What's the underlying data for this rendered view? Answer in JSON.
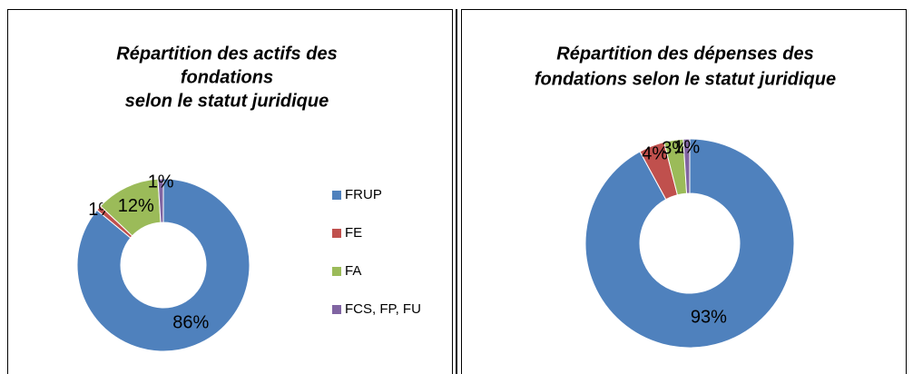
{
  "chart_data": [
    {
      "type": "donut",
      "title": [
        "Répartition des actifs des",
        "fondations",
        "selon le statut juridique"
      ],
      "categories": [
        "FRUP",
        "FE",
        "FA",
        "FCS, FP, FU"
      ],
      "values": [
        86,
        1,
        12,
        1
      ],
      "value_labels": [
        "86%",
        "1%",
        "12%",
        "1%"
      ],
      "colors": [
        "#4f81bd",
        "#c0504d",
        "#9bbb59",
        "#8064a2"
      ],
      "legend": "right"
    },
    {
      "type": "donut",
      "title": [
        "Répartition des dépenses des",
        "fondations selon le statut juridique"
      ],
      "values": [
        93,
        4,
        3,
        1
      ],
      "value_labels": [
        "93%",
        "4%",
        "3%",
        "1%"
      ],
      "colors": [
        "#4f81bd",
        "#c0504d",
        "#9bbb59",
        "#8064a2"
      ]
    }
  ]
}
